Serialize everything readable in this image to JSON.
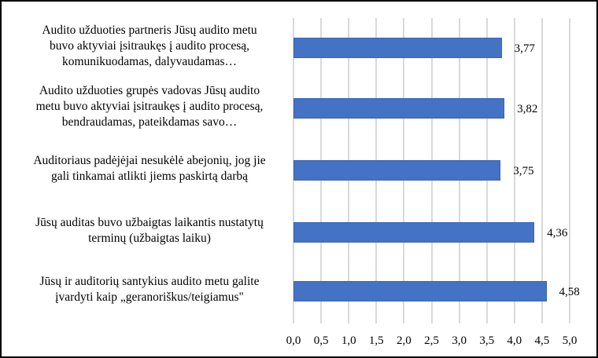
{
  "chart_data": {
    "type": "bar",
    "orientation": "horizontal",
    "title": "",
    "xlabel": "",
    "ylabel": "",
    "xlim": [
      0,
      5
    ],
    "grid": true,
    "legend": null,
    "x_ticks": [
      "0,0",
      "0,5",
      "1,0",
      "1,5",
      "2,0",
      "2,5",
      "3,0",
      "3,5",
      "4,0",
      "4,5",
      "5,0"
    ],
    "categories": [
      "Audito užduoties partneris Jūsų audito metu buvo aktyviai įsitraukęs į audito procesą, komunikuodamas, dalyvaudamas…",
      "Audito užduoties grupės vadovas Jūsų audito metu buvo aktyviai įsitraukęs į audito procesą, bendraudamas, pateikdamas savo…",
      "Auditoriaus padėjėjai nesukėlė abejonių, jog jie gali tinkamai atlikti jiems paskirtą darbą",
      "Jūsų auditas buvo užbaigtas laikantis nustatytų terminų (užbaigtas laiku)",
      "Jūsų ir auditorių santykius audito metu galite įvardyti kaip „geranoriškus/teigiamus\""
    ],
    "values": [
      3.77,
      3.82,
      3.75,
      4.36,
      4.58
    ],
    "value_labels": [
      "3,77",
      "3,82",
      "3,75",
      "4,36",
      "4,58"
    ],
    "bar_color": "#4472c4",
    "category_lines": [
      [
        "Audito užduoties partneris Jūsų audito metu",
        "buvo aktyviai įsitraukęs į audito procesą,",
        "komunikuodamas, dalyvaudamas…"
      ],
      [
        "Audito užduoties grupės vadovas Jūsų audito",
        "metu buvo aktyviai įsitraukęs į audito procesą,",
        "bendraudamas, pateikdamas savo…"
      ],
      [
        "Auditoriaus padėjėjai nesukėlė abejonių, jog jie",
        "gali tinkamai atlikti jiems paskirtą darbą"
      ],
      [
        "Jūsų auditas buvo užbaigtas laikantis nustatytų",
        "terminų (užbaigtas laiku)"
      ],
      [
        "Jūsų ir auditorių santykius audito metu galite",
        "įvardyti kaip „geranoriškus/teigiamus\""
      ]
    ]
  }
}
